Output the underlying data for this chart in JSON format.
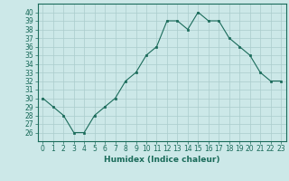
{
  "x": [
    0,
    1,
    2,
    3,
    4,
    5,
    6,
    7,
    8,
    9,
    10,
    11,
    12,
    13,
    14,
    15,
    16,
    17,
    18,
    19,
    20,
    21,
    22,
    23
  ],
  "y": [
    30,
    29,
    28,
    26,
    26,
    28,
    29,
    30,
    32,
    33,
    35,
    36,
    39,
    39,
    38,
    40,
    39,
    39,
    37,
    36,
    35,
    33,
    32,
    32
  ],
  "line_color": "#1a6b5a",
  "marker": "s",
  "marker_size": 2,
  "bg_color": "#cce8e8",
  "grid_color": "#aacccc",
  "xlabel": "Humidex (Indice chaleur)",
  "xlim": [
    -0.5,
    23.5
  ],
  "ylim": [
    25,
    41
  ],
  "yticks": [
    26,
    27,
    28,
    29,
    30,
    31,
    32,
    33,
    34,
    35,
    36,
    37,
    38,
    39,
    40
  ],
  "xticks": [
    0,
    1,
    2,
    3,
    4,
    5,
    6,
    7,
    8,
    9,
    10,
    11,
    12,
    13,
    14,
    15,
    16,
    17,
    18,
    19,
    20,
    21,
    22,
    23
  ],
  "tick_fontsize": 5.5,
  "label_fontsize": 6.5
}
